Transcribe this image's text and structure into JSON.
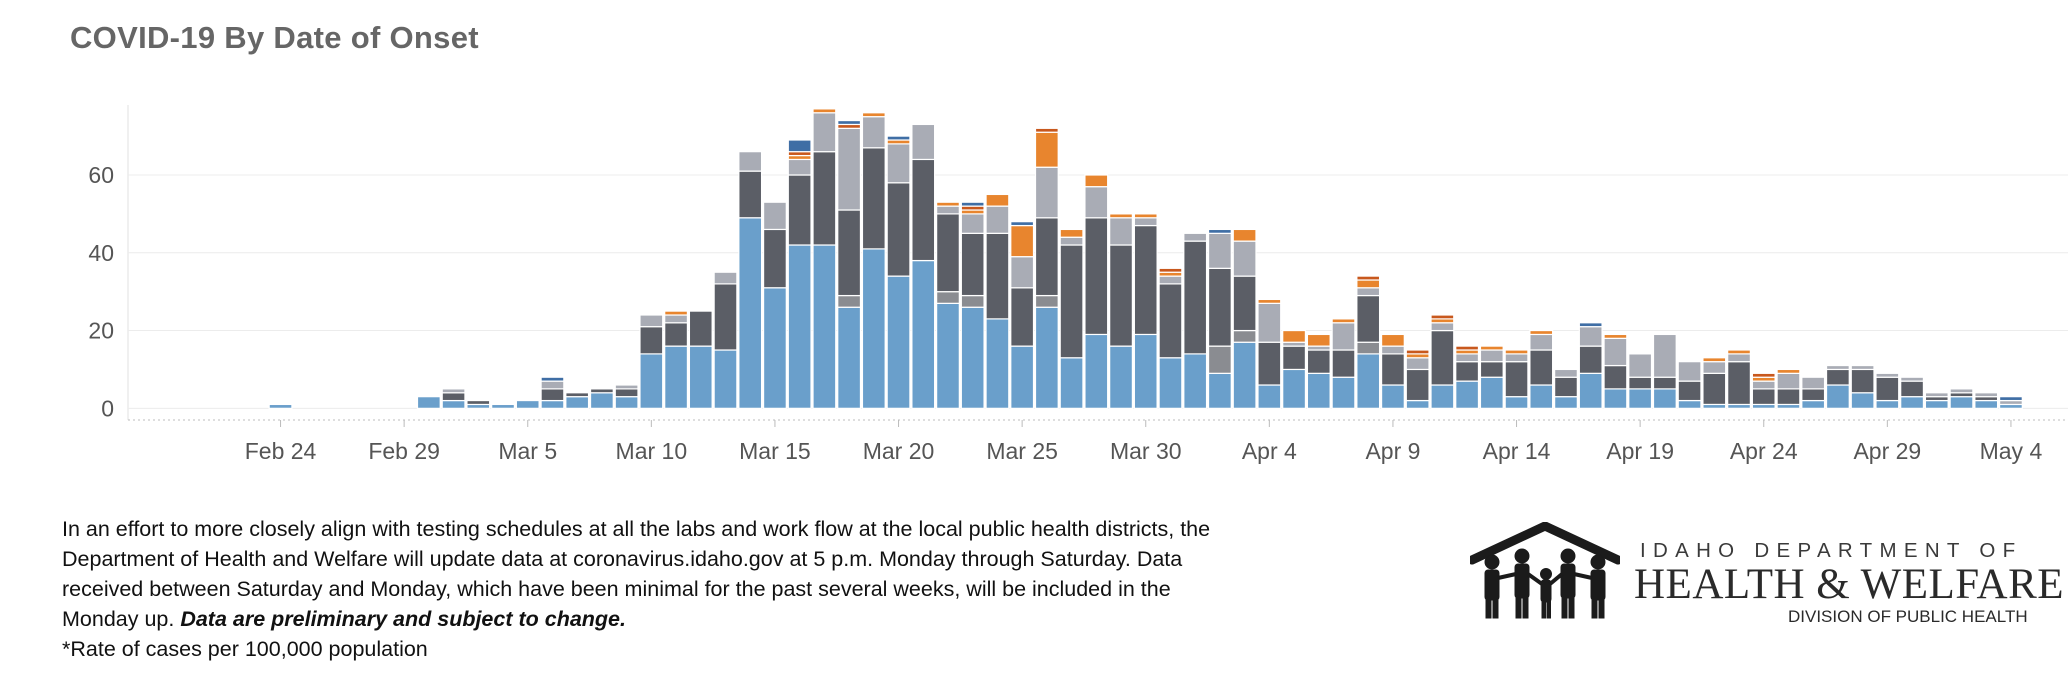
{
  "title": "COVID-19 By Date of Onset",
  "footnote": {
    "line1": "In an effort to more closely align with testing schedules at all the labs and work flow at the local public health districts, the",
    "line2": "Department of Health and Welfare will update data at coronavirus.idaho.gov at 5 p.m. Monday through Saturday. Data",
    "line3": "received between Saturday and Monday, which have been minimal for the past several weeks, will be included in the",
    "line4_plain": "Monday up. ",
    "line4_emph": "Data are preliminary and subject to change.",
    "line5": "*Rate of cases per 100,000 population"
  },
  "logo": {
    "line1": "IDAHO DEPARTMENT OF",
    "line2": "HEALTH & WELFARE",
    "line3": "DIVISION OF PUBLIC HEALTH"
  },
  "colors": {
    "s1": "#6a9fcb",
    "s2": "#8a8c91",
    "s3": "#5b5e66",
    "s4": "#a9acb5",
    "s5": "#e8852e",
    "s6": "#c8581d",
    "s7": "#3f6ea5"
  },
  "chart_data": {
    "type": "bar",
    "stacked": true,
    "x_start": "Feb 22",
    "x_end": "May 5",
    "x": [
      "Feb 22",
      "Feb 23",
      "Feb 24",
      "Feb 25",
      "Feb 26",
      "Feb 27",
      "Feb 28",
      "Feb 29",
      "Mar 1",
      "Mar 2",
      "Mar 3",
      "Mar 4",
      "Mar 5",
      "Mar 6",
      "Mar 7",
      "Mar 8",
      "Mar 9",
      "Mar 10",
      "Mar 11",
      "Mar 12",
      "Mar 13",
      "Mar 14",
      "Mar 15",
      "Mar 16",
      "Mar 17",
      "Mar 18",
      "Mar 19",
      "Mar 20",
      "Mar 21",
      "Mar 22",
      "Mar 23",
      "Mar 24",
      "Mar 25",
      "Mar 26",
      "Mar 27",
      "Mar 28",
      "Mar 29",
      "Mar 30",
      "Mar 31",
      "Apr 1",
      "Apr 2",
      "Apr 3",
      "Apr 4",
      "Apr 5",
      "Apr 6",
      "Apr 7",
      "Apr 8",
      "Apr 9",
      "Apr 10",
      "Apr 11",
      "Apr 12",
      "Apr 13",
      "Apr 14",
      "Apr 15",
      "Apr 16",
      "Apr 17",
      "Apr 18",
      "Apr 19",
      "Apr 20",
      "Apr 21",
      "Apr 22",
      "Apr 23",
      "Apr 24",
      "Apr 25",
      "Apr 26",
      "Apr 27",
      "Apr 28",
      "Apr 29",
      "Apr 30",
      "May 1",
      "May 2",
      "May 3",
      "May 4",
      "May 5"
    ],
    "x_ticks": [
      "Feb 24",
      "Feb 29",
      "Mar 5",
      "Mar 10",
      "Mar 15",
      "Mar 20",
      "Mar 25",
      "Mar 30",
      "Apr 4",
      "Apr 9",
      "Apr 14",
      "Apr 19",
      "Apr 24",
      "Apr 29",
      "May 4"
    ],
    "y_ticks": [
      0,
      20,
      40,
      60
    ],
    "ylim": [
      -3,
      78
    ],
    "series": [
      {
        "values": [
          0,
          0,
          1,
          0,
          0,
          0,
          0,
          0,
          3,
          2,
          1,
          1,
          2,
          2,
          3,
          4,
          3,
          14,
          16,
          16,
          15,
          49,
          31,
          42,
          42,
          26,
          41,
          34,
          38,
          27,
          26,
          23,
          16,
          26,
          13,
          19,
          16,
          19,
          13,
          14,
          9,
          17,
          6,
          10,
          9,
          8,
          14,
          6,
          2,
          6,
          7,
          8,
          3,
          6,
          3,
          9,
          5,
          5,
          5,
          2,
          1,
          1,
          1,
          1,
          2,
          6,
          4,
          2,
          3,
          2,
          3,
          2,
          1,
          0
        ]
      },
      {
        "values": [
          0,
          0,
          0,
          0,
          0,
          0,
          0,
          0,
          0,
          0,
          0,
          0,
          0,
          0,
          0,
          0,
          0,
          0,
          0,
          0,
          0,
          0,
          0,
          0,
          0,
          3,
          0,
          0,
          0,
          3,
          3,
          0,
          0,
          3,
          0,
          0,
          0,
          0,
          0,
          0,
          7,
          3,
          0,
          0,
          0,
          0,
          3,
          0,
          0,
          0,
          0,
          0,
          0,
          0,
          0,
          0,
          0,
          0,
          0,
          0,
          0,
          0,
          0,
          0,
          0,
          0,
          0,
          0,
          0,
          0,
          0,
          0,
          0,
          0
        ]
      },
      {
        "values": [
          0,
          0,
          0,
          0,
          0,
          0,
          0,
          0,
          0,
          2,
          1,
          0,
          0,
          3,
          1,
          1,
          2,
          7,
          6,
          9,
          17,
          12,
          15,
          18,
          24,
          22,
          26,
          24,
          26,
          20,
          16,
          22,
          15,
          20,
          29,
          30,
          26,
          28,
          19,
          29,
          20,
          14,
          11,
          6,
          6,
          7,
          12,
          8,
          8,
          14,
          5,
          4,
          9,
          9,
          5,
          7,
          6,
          3,
          3,
          5,
          8,
          11,
          4,
          4,
          3,
          4,
          6,
          6,
          4,
          1,
          1,
          1,
          0,
          0
        ]
      },
      {
        "values": [
          0,
          0,
          0,
          0,
          0,
          0,
          0,
          0,
          0,
          1,
          0,
          0,
          0,
          2,
          0,
          0,
          1,
          3,
          2,
          0,
          3,
          5,
          7,
          4,
          10,
          21,
          8,
          10,
          9,
          2,
          5,
          7,
          8,
          13,
          2,
          8,
          7,
          2,
          2,
          2,
          9,
          9,
          10,
          1,
          1,
          7,
          2,
          2,
          3,
          2,
          2,
          3,
          2,
          4,
          2,
          5,
          7,
          6,
          11,
          5,
          3,
          2,
          2,
          4,
          3,
          1,
          1,
          1,
          1,
          1,
          1,
          1,
          1,
          0
        ]
      },
      {
        "values": [
          0,
          0,
          0,
          0,
          0,
          0,
          0,
          0,
          0,
          0,
          0,
          0,
          0,
          0,
          0,
          0,
          0,
          0,
          1,
          0,
          0,
          0,
          0,
          1,
          1,
          0,
          1,
          1,
          0,
          1,
          1,
          3,
          8,
          9,
          2,
          3,
          1,
          1,
          1,
          0,
          0,
          3,
          1,
          3,
          3,
          1,
          2,
          3,
          1,
          1,
          1,
          1,
          1,
          1,
          0,
          0,
          1,
          0,
          0,
          0,
          1,
          1,
          1,
          1,
          0,
          0,
          0,
          0,
          0,
          0,
          0,
          0,
          0,
          0
        ]
      },
      {
        "values": [
          0,
          0,
          0,
          0,
          0,
          0,
          0,
          0,
          0,
          0,
          0,
          0,
          0,
          0,
          0,
          0,
          0,
          0,
          0,
          0,
          0,
          0,
          0,
          1,
          0,
          1,
          0,
          0,
          0,
          0,
          1,
          0,
          0,
          1,
          0,
          0,
          0,
          0,
          1,
          0,
          0,
          0,
          0,
          0,
          0,
          0,
          1,
          0,
          1,
          1,
          1,
          0,
          0,
          0,
          0,
          0,
          0,
          0,
          0,
          0,
          0,
          0,
          1,
          0,
          0,
          0,
          0,
          0,
          0,
          0,
          0,
          0,
          0,
          0
        ]
      },
      {
        "values": [
          0,
          0,
          0,
          0,
          0,
          0,
          0,
          0,
          0,
          0,
          0,
          0,
          0,
          1,
          0,
          0,
          0,
          0,
          0,
          0,
          0,
          0,
          0,
          3,
          0,
          1,
          0,
          1,
          0,
          0,
          1,
          0,
          1,
          0,
          0,
          0,
          0,
          0,
          0,
          0,
          1,
          0,
          0,
          0,
          0,
          0,
          0,
          0,
          0,
          0,
          0,
          0,
          0,
          0,
          0,
          1,
          0,
          0,
          0,
          0,
          0,
          0,
          0,
          0,
          0,
          0,
          0,
          0,
          0,
          0,
          0,
          0,
          1,
          0
        ]
      }
    ]
  }
}
